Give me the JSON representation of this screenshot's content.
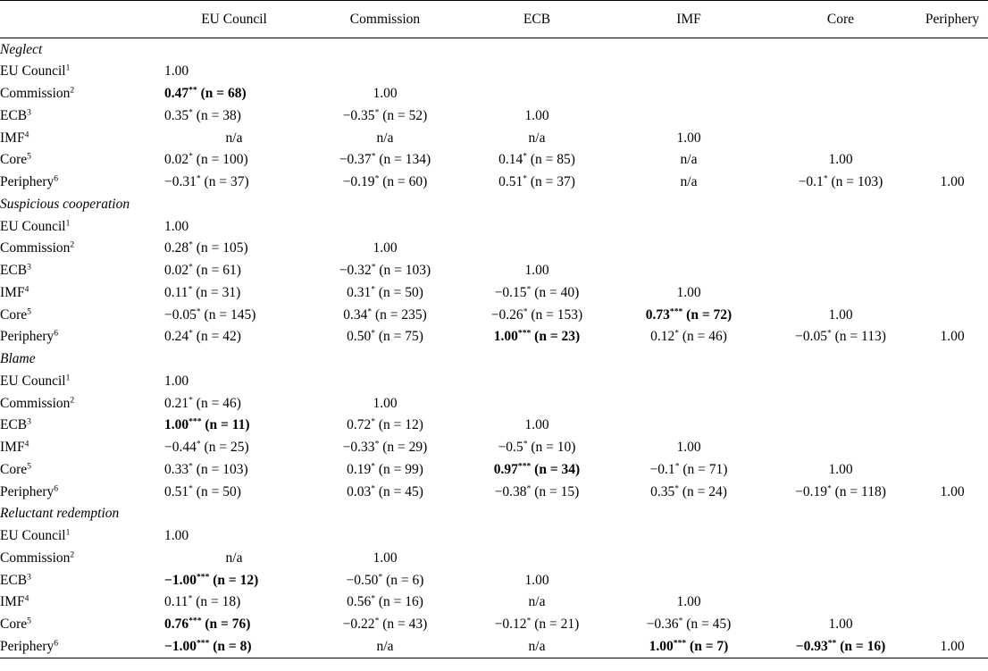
{
  "columns": [
    "",
    "EU Council",
    "Commission",
    "ECB",
    "IMF",
    "Core",
    "Periphery"
  ],
  "row_labels": [
    {
      "name": "EU Council",
      "sup": "1"
    },
    {
      "name": "Commission",
      "sup": "2"
    },
    {
      "name": "ECB",
      "sup": "3"
    },
    {
      "name": "IMF",
      "sup": "4"
    },
    {
      "name": "Core",
      "sup": "5"
    },
    {
      "name": "Periphery",
      "sup": "6"
    }
  ],
  "sections": [
    {
      "title": "Neglect",
      "rows": [
        [
          {
            "v": "1.00"
          }
        ],
        [
          {
            "v": "0.47",
            "s": "**",
            "n": "(n = 68)",
            "b": true
          },
          {
            "v": "1.00"
          }
        ],
        [
          {
            "v": "0.35",
            "s": "*",
            "n": "(n = 38)"
          },
          {
            "v": "−0.35",
            "s": "*",
            "n": "(n = 52)"
          },
          {
            "v": "1.00"
          }
        ],
        [
          {
            "v": "n/a"
          },
          {
            "v": "n/a"
          },
          {
            "v": "n/a"
          },
          {
            "v": "1.00"
          }
        ],
        [
          {
            "v": "0.02",
            "s": "*",
            "n": "(n = 100)"
          },
          {
            "v": "−0.37",
            "s": "*",
            "n": "(n = 134)"
          },
          {
            "v": "0.14",
            "s": "*",
            "n": "(n = 85)"
          },
          {
            "v": "n/a"
          },
          {
            "v": "1.00"
          }
        ],
        [
          {
            "v": "−0.31",
            "s": "*",
            "n": "(n = 37)"
          },
          {
            "v": "−0.19",
            "s": "*",
            "n": "(n = 60)"
          },
          {
            "v": "0.51",
            "s": "*",
            "n": "(n = 37)"
          },
          {
            "v": "n/a"
          },
          {
            "v": "−0.1",
            "s": "*",
            "n": "(n = 103)"
          },
          {
            "v": "1.00"
          }
        ]
      ]
    },
    {
      "title": "Suspicious cooperation",
      "rows": [
        [
          {
            "v": "1.00"
          }
        ],
        [
          {
            "v": "0.28",
            "s": "*",
            "n": "(n = 105)"
          },
          {
            "v": "1.00"
          }
        ],
        [
          {
            "v": "0.02",
            "s": "*",
            "n": "(n = 61)"
          },
          {
            "v": "−0.32",
            "s": "*",
            "n": "(n = 103)"
          },
          {
            "v": "1.00"
          }
        ],
        [
          {
            "v": "0.11",
            "s": "*",
            "n": "(n = 31)"
          },
          {
            "v": "0.31",
            "s": "*",
            "n": "(n = 50)"
          },
          {
            "v": "−0.15",
            "s": "*",
            "n": "(n = 40)"
          },
          {
            "v": "1.00"
          }
        ],
        [
          {
            "v": "−0.05",
            "s": "*",
            "n": "(n = 145)"
          },
          {
            "v": "0.34",
            "s": "*",
            "n": "(n = 235)"
          },
          {
            "v": "−0.26",
            "s": "*",
            "n": "(n = 153)"
          },
          {
            "v": "0.73",
            "s": "***",
            "n": "(n = 72)",
            "b": true
          },
          {
            "v": "1.00"
          }
        ],
        [
          {
            "v": "0.24",
            "s": "*",
            "n": "(n = 42)"
          },
          {
            "v": "0.50",
            "s": "*",
            "n": "(n = 75)"
          },
          {
            "v": "1.00",
            "s": "***",
            "n": "(n = 23)",
            "b": true
          },
          {
            "v": "0.12",
            "s": "*",
            "n": "(n = 46)"
          },
          {
            "v": "−0.05",
            "s": "*",
            "n": "(n = 113)"
          },
          {
            "v": "1.00"
          }
        ]
      ]
    },
    {
      "title": "Blame",
      "rows": [
        [
          {
            "v": "1.00"
          }
        ],
        [
          {
            "v": "0.21",
            "s": "*",
            "n": "(n = 46)"
          },
          {
            "v": "1.00"
          }
        ],
        [
          {
            "v": "1.00",
            "s": "***",
            "n": "(n = 11)",
            "b": true
          },
          {
            "v": "0.72",
            "s": "*",
            "n": "(n = 12)"
          },
          {
            "v": "1.00"
          }
        ],
        [
          {
            "v": "−0.44",
            "s": "*",
            "n": "(n = 25)"
          },
          {
            "v": "−0.33",
            "s": "*",
            "n": "(n = 29)"
          },
          {
            "v": "−0.5",
            "s": "*",
            "n": "(n = 10)"
          },
          {
            "v": "1.00"
          }
        ],
        [
          {
            "v": "0.33",
            "s": "*",
            "n": "(n = 103)"
          },
          {
            "v": "0.19",
            "s": "*",
            "n": "(n = 99)"
          },
          {
            "v": "0.97",
            "s": "***",
            "n": "(n = 34)",
            "b": true
          },
          {
            "v": "−0.1",
            "s": "*",
            "n": "(n = 71)"
          },
          {
            "v": "1.00"
          }
        ],
        [
          {
            "v": "0.51",
            "s": "*",
            "n": "(n = 50)"
          },
          {
            "v": "0.03",
            "s": "*",
            "n": "(n = 45)"
          },
          {
            "v": "−0.38",
            "s": "*",
            "n": "(n = 15)"
          },
          {
            "v": "0.35",
            "s": "*",
            "n": "(n = 24)"
          },
          {
            "v": "−0.19",
            "s": "*",
            "n": "(n = 118)"
          },
          {
            "v": "1.00"
          }
        ]
      ]
    },
    {
      "title": "Reluctant redemption",
      "rows": [
        [
          {
            "v": "1.00"
          }
        ],
        [
          {
            "v": "n/a"
          },
          {
            "v": "1.00"
          }
        ],
        [
          {
            "v": "−1.00",
            "s": "***",
            "n": "(n = 12)",
            "b": true
          },
          {
            "v": "−0.50",
            "s": "*",
            "n": "(n = 6)"
          },
          {
            "v": "1.00"
          }
        ],
        [
          {
            "v": "0.11",
            "s": "*",
            "n": "(n = 18)"
          },
          {
            "v": "0.56",
            "s": "*",
            "n": "(n = 16)"
          },
          {
            "v": "n/a"
          },
          {
            "v": "1.00"
          }
        ],
        [
          {
            "v": "0.76",
            "s": "***",
            "n": "(n = 76)",
            "b": true
          },
          {
            "v": "−0.22",
            "s": "*",
            "n": "(n = 43)"
          },
          {
            "v": "−0.12",
            "s": "*",
            "n": "(n = 21)"
          },
          {
            "v": "−0.36",
            "s": "*",
            "n": "(n = 45)"
          },
          {
            "v": "1.00"
          }
        ],
        [
          {
            "v": "−1.00",
            "s": "***",
            "n": "(n = 8)",
            "b": true
          },
          {
            "v": "n/a"
          },
          {
            "v": "n/a"
          },
          {
            "v": "1.00",
            "s": "***",
            "n": "(n = 7)",
            "b": true
          },
          {
            "v": "−0.93",
            "s": "**",
            "n": "(n = 16)",
            "b": true
          },
          {
            "v": "1.00"
          }
        ]
      ]
    }
  ]
}
